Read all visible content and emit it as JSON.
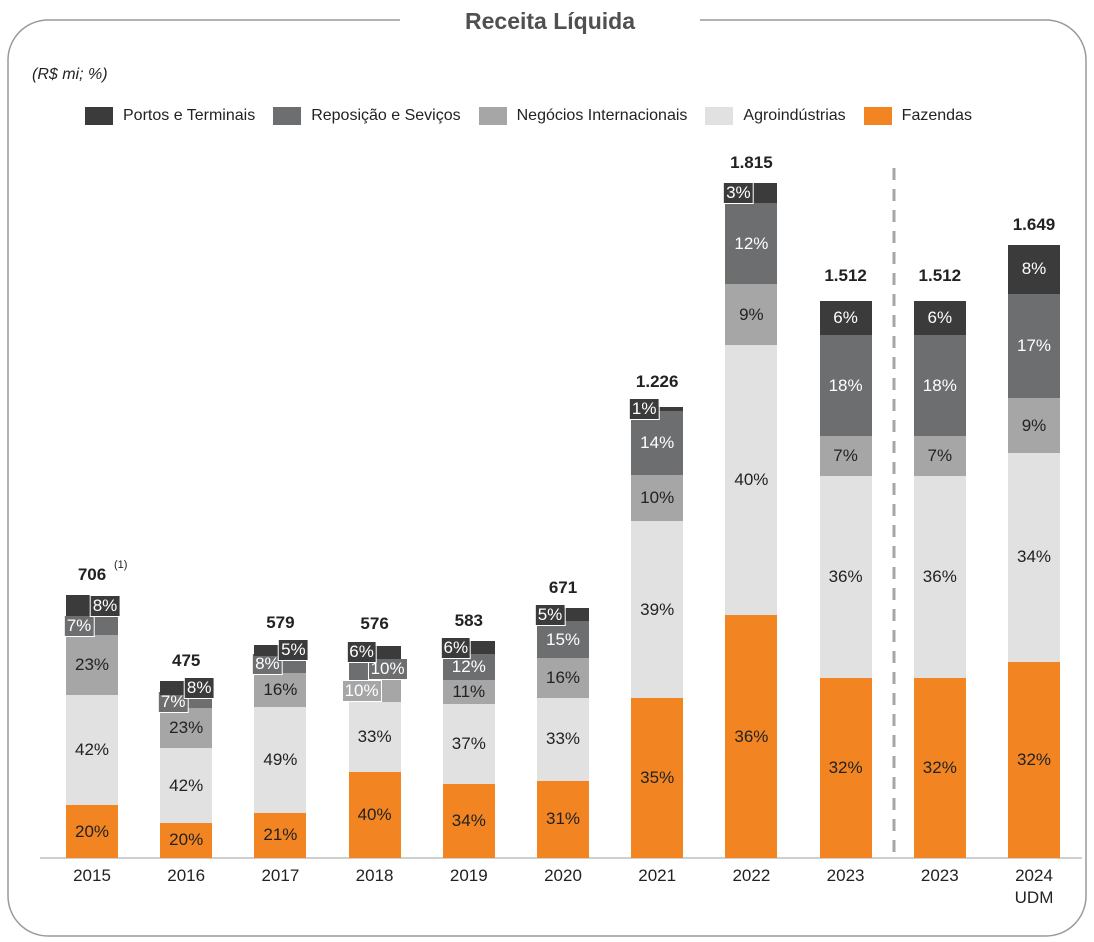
{
  "chart_data": {
    "type": "stacked-bar",
    "title": "Receita Líquida",
    "subtitle": "(R$ mi; %)",
    "annotation": "(1)",
    "categories": [
      "2015",
      "2016",
      "2017",
      "2018",
      "2019",
      "2020",
      "2021",
      "2022",
      "2023",
      "2023",
      "2024 UDM"
    ],
    "totals": {
      "values": [
        706,
        475,
        579,
        576,
        583,
        671,
        1226,
        1815,
        1512,
        1512,
        1649
      ],
      "value_labels": [
        "706",
        "475",
        "579",
        "576",
        "583",
        "671",
        "1.226",
        "1.815",
        "1.512",
        "1.512",
        "1.649"
      ]
    },
    "series": [
      {
        "name": "Portos e Terminais",
        "color": "#3b3b3b",
        "values": [
          8,
          8,
          5,
          6,
          6,
          5,
          1,
          3,
          6,
          6,
          8
        ],
        "value_labels": [
          "8%",
          "8%",
          "5%",
          "6%",
          "6%",
          "5%",
          "1%",
          "3%",
          "6%",
          "6%",
          "8%"
        ]
      },
      {
        "name": "Reposição e Seviços",
        "color": "#6d6e70",
        "values": [
          7,
          7,
          8,
          10,
          12,
          15,
          14,
          12,
          18,
          18,
          17
        ],
        "value_labels": [
          "7%",
          "7%",
          "8%",
          "10%",
          "12%",
          "15%",
          "14%",
          "12%",
          "18%",
          "18%",
          "17%"
        ]
      },
      {
        "name": "Negócios Internacionais",
        "color": "#a6a6a6",
        "values": [
          23,
          23,
          16,
          10,
          11,
          16,
          10,
          9,
          7,
          7,
          9
        ],
        "value_labels": [
          "23%",
          "23%",
          "16%",
          "10%",
          "11%",
          "16%",
          "10%",
          "9%",
          "7%",
          "7%",
          "9%"
        ]
      },
      {
        "name": "Agroindústrias",
        "color": "#e1e1e1",
        "values": [
          42,
          42,
          49,
          33,
          37,
          33,
          39,
          40,
          36,
          36,
          34
        ],
        "value_labels": [
          "42%",
          "42%",
          "49%",
          "33%",
          "37%",
          "33%",
          "39%",
          "40%",
          "36%",
          "36%",
          "34%"
        ]
      },
      {
        "name": "Fazendas",
        "color": "#f28522",
        "values": [
          20,
          20,
          21,
          40,
          34,
          31,
          35,
          36,
          32,
          32,
          32
        ],
        "value_labels": [
          "20%",
          "20%",
          "21%",
          "40%",
          "34%",
          "31%",
          "35%",
          "36%",
          "32%",
          "32%",
          "32%"
        ]
      }
    ]
  }
}
